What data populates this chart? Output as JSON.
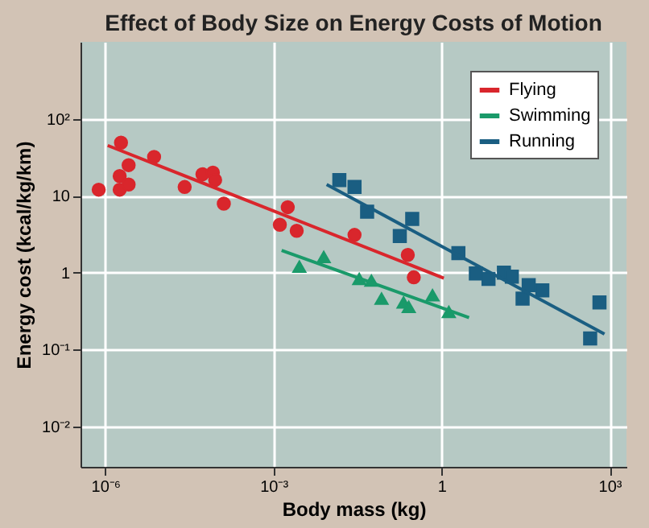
{
  "chart_data": {
    "type": "scatter",
    "title": "Effect of Body Size on Energy Costs of Motion",
    "xlabel": "Body mass (kg)",
    "ylabel": "Energy cost (kcal/kg/km)",
    "log": "xy",
    "grid": true,
    "legend": "top right",
    "xlim": [
      3.6e-07,
      2000
    ],
    "ylim": [
      0.003,
      1000
    ],
    "xticks": [
      {
        "value": 1e-06,
        "label": "10⁻⁶"
      },
      {
        "value": 0.001,
        "label": "10⁻³"
      },
      1,
      {
        "value": 1000,
        "label": "10³"
      }
    ],
    "yticks": [
      {
        "value": 0.01,
        "label": "10⁻²"
      },
      {
        "value": 0.1,
        "label": "10⁻¹"
      },
      1,
      10,
      {
        "value": 100,
        "label": "10²"
      }
    ],
    "series": [
      {
        "name": "Flying",
        "color": "#d9262c",
        "marker": "circle",
        "x": [
          7.6e-07,
          1.9e-06,
          2.6e-06,
          1.8e-06,
          1.8e-06,
          2.6e-06,
          7.4e-06,
          2.6e-05,
          5.4e-05,
          8.3e-05,
          9.1e-05,
          0.00013,
          0.0013,
          0.0018,
          0.0026,
          0.028,
          0.25,
          0.32
        ],
        "values": [
          12,
          49,
          25,
          18,
          12,
          14,
          32,
          13,
          19,
          20,
          16,
          7.9,
          4.2,
          7.1,
          3.5,
          3.1,
          1.7,
          0.87
        ]
      },
      {
        "name": "Swimming",
        "color": "#1a9a6a",
        "marker": "triangle",
        "x": [
          0.0029,
          0.0079,
          0.034,
          0.056,
          0.085,
          0.21,
          0.26,
          0.69,
          1.35
        ],
        "values": [
          1.2,
          1.6,
          0.83,
          0.79,
          0.46,
          0.41,
          0.36,
          0.51,
          0.31
        ]
      },
      {
        "name": "Running",
        "color": "#1a5e82",
        "marker": "square",
        "x": [
          0.015,
          0.028,
          0.047,
          0.3,
          0.18,
          2.0,
          4.1,
          6.9,
          13,
          18,
          28,
          36,
          63,
          660,
          450
        ],
        "values": [
          16,
          13,
          6.2,
          5.0,
          3.0,
          1.8,
          0.98,
          0.83,
          1.0,
          0.89,
          0.46,
          0.69,
          0.59,
          0.41,
          0.14
        ]
      },
      {
        "color": "#d9262c",
        "type": "line",
        "x": [
          1.1e-06,
          1.1
        ],
        "values": [
          45,
          0.85
        ]
      },
      {
        "color": "#1a9a6a",
        "type": "line",
        "x": [
          0.0014,
          3.1
        ],
        "values": [
          1.95,
          0.26
        ]
      },
      {
        "color": "#1a5e82",
        "type": "line",
        "x": [
          0.0089,
          810
        ],
        "values": [
          14,
          0.16
        ]
      }
    ]
  }
}
